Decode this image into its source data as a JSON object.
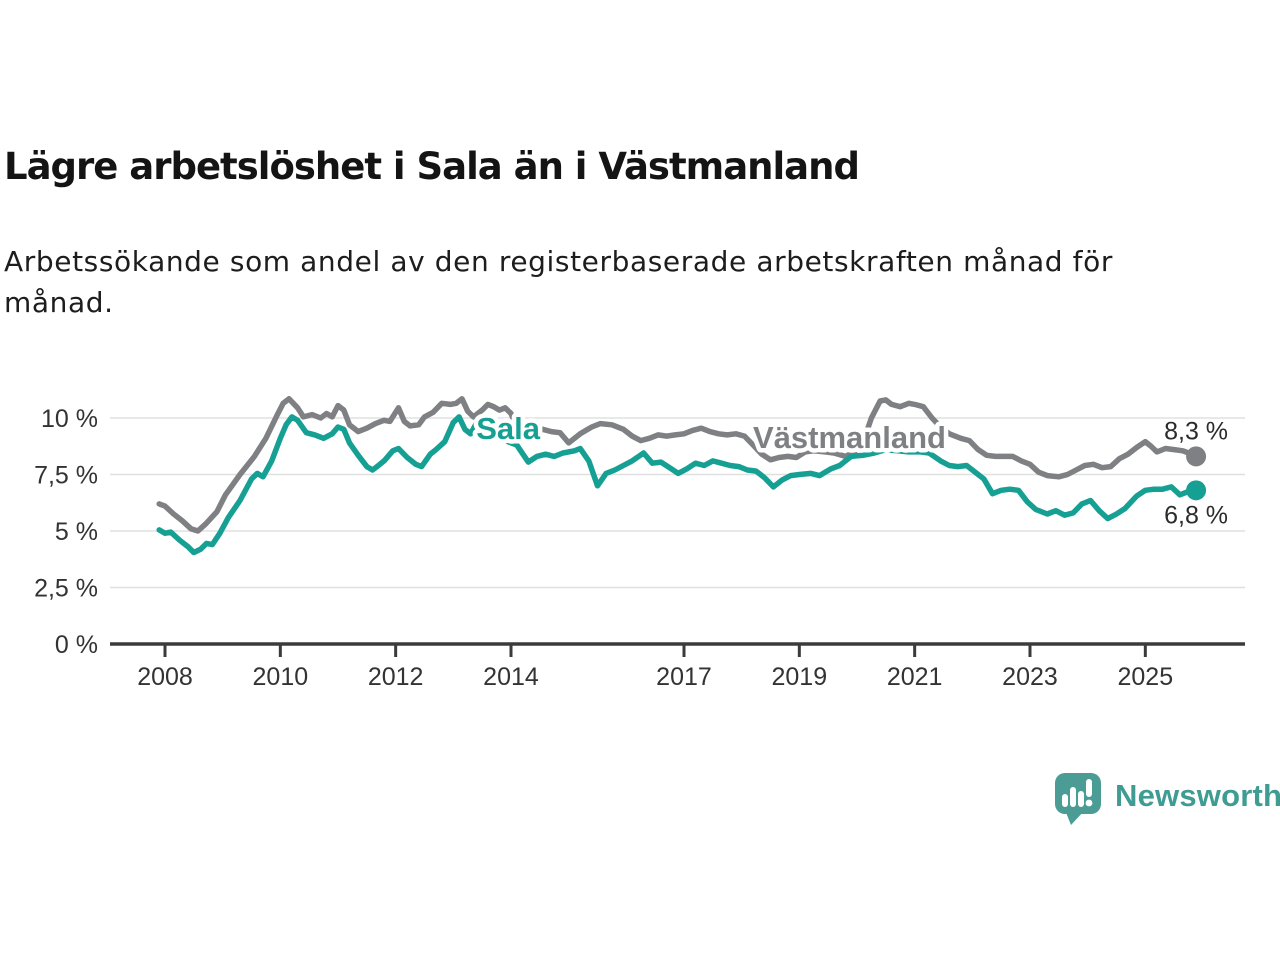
{
  "header": {
    "title": "Lägre arbetslöshet i Sala än i Västmanland",
    "subtitle_line1": "Arbetssökande som andel av den registerbaserade arbetskraften månad för",
    "subtitle_line2": "månad."
  },
  "chart_data": {
    "type": "line",
    "title": "Lägre arbetslöshet i Sala än i Västmanland",
    "subtitle": "Arbetssökande som andel av den registerbaserade arbetskraften månad för månad.",
    "unit": "%",
    "grid": "horizontal",
    "x_range": [
      2007.9,
      2026.7
    ],
    "y_range": [
      0,
      11.4
    ],
    "x_ticks": [
      2008,
      2010,
      2012,
      2014,
      2017,
      2019,
      2021,
      2023,
      2025
    ],
    "x_tick_labels": [
      "2008",
      "2010",
      "2012",
      "2014",
      "2017",
      "2019",
      "2021",
      "2023",
      "2025"
    ],
    "y_ticks": [
      0,
      2.5,
      5,
      7.5,
      10
    ],
    "y_tick_labels": [
      "0 %",
      "2,5 %",
      "5 %",
      "7,5 %",
      "10 %"
    ],
    "axis_color": "#3b3b3b",
    "grid_color": "#e0e0e0",
    "tick_label_color": "#333333",
    "series": [
      {
        "name": "Västmanland",
        "color": "#7f8083",
        "label_at": [
          2019.87,
          9.15
        ],
        "end_label": "8,3 %",
        "end_label_side": "above",
        "points": [
          [
            2007.9,
            6.2
          ],
          [
            2008.0,
            6.1
          ],
          [
            2008.15,
            5.75
          ],
          [
            2008.3,
            5.45
          ],
          [
            2008.45,
            5.1
          ],
          [
            2008.57,
            5.0
          ],
          [
            2008.7,
            5.3
          ],
          [
            2008.9,
            5.85
          ],
          [
            2009.05,
            6.6
          ],
          [
            2009.3,
            7.5
          ],
          [
            2009.55,
            8.3
          ],
          [
            2009.75,
            9.1
          ],
          [
            2009.95,
            10.15
          ],
          [
            2010.05,
            10.65
          ],
          [
            2010.15,
            10.85
          ],
          [
            2010.3,
            10.45
          ],
          [
            2010.4,
            10.05
          ],
          [
            2010.55,
            10.15
          ],
          [
            2010.7,
            10.0
          ],
          [
            2010.8,
            10.2
          ],
          [
            2010.9,
            10.05
          ],
          [
            2011.0,
            10.55
          ],
          [
            2011.1,
            10.35
          ],
          [
            2011.2,
            9.7
          ],
          [
            2011.35,
            9.4
          ],
          [
            2011.5,
            9.55
          ],
          [
            2011.65,
            9.75
          ],
          [
            2011.8,
            9.9
          ],
          [
            2011.9,
            9.85
          ],
          [
            2012.05,
            10.45
          ],
          [
            2012.15,
            9.85
          ],
          [
            2012.25,
            9.65
          ],
          [
            2012.4,
            9.7
          ],
          [
            2012.5,
            10.05
          ],
          [
            2012.65,
            10.25
          ],
          [
            2012.8,
            10.65
          ],
          [
            2012.95,
            10.6
          ],
          [
            2013.05,
            10.65
          ],
          [
            2013.15,
            10.85
          ],
          [
            2013.25,
            10.3
          ],
          [
            2013.35,
            10.05
          ],
          [
            2013.5,
            10.35
          ],
          [
            2013.6,
            10.6
          ],
          [
            2013.7,
            10.5
          ],
          [
            2013.8,
            10.35
          ],
          [
            2013.9,
            10.45
          ],
          [
            2014.0,
            10.2
          ],
          [
            2014.1,
            9.6
          ],
          [
            2014.25,
            9.4
          ],
          [
            2014.4,
            9.35
          ],
          [
            2014.55,
            9.5
          ],
          [
            2014.7,
            9.4
          ],
          [
            2014.85,
            9.35
          ],
          [
            2015.0,
            8.9
          ],
          [
            2015.2,
            9.3
          ],
          [
            2015.4,
            9.6
          ],
          [
            2015.55,
            9.75
          ],
          [
            2015.75,
            9.7
          ],
          [
            2015.95,
            9.5
          ],
          [
            2016.1,
            9.2
          ],
          [
            2016.25,
            9.0
          ],
          [
            2016.4,
            9.1
          ],
          [
            2016.55,
            9.25
          ],
          [
            2016.7,
            9.2
          ],
          [
            2016.85,
            9.25
          ],
          [
            2017.0,
            9.3
          ],
          [
            2017.15,
            9.45
          ],
          [
            2017.3,
            9.55
          ],
          [
            2017.45,
            9.4
          ],
          [
            2017.6,
            9.3
          ],
          [
            2017.75,
            9.25
          ],
          [
            2017.9,
            9.3
          ],
          [
            2018.05,
            9.2
          ],
          [
            2018.2,
            8.8
          ],
          [
            2018.35,
            8.4
          ],
          [
            2018.5,
            8.15
          ],
          [
            2018.65,
            8.25
          ],
          [
            2018.8,
            8.3
          ],
          [
            2018.95,
            8.25
          ],
          [
            2019.1,
            8.5
          ],
          [
            2019.25,
            8.55
          ],
          [
            2019.45,
            8.5
          ],
          [
            2019.6,
            8.45
          ],
          [
            2019.8,
            8.3
          ],
          [
            2019.95,
            8.5
          ],
          [
            2020.1,
            8.9
          ],
          [
            2020.25,
            10.0
          ],
          [
            2020.4,
            10.75
          ],
          [
            2020.5,
            10.8
          ],
          [
            2020.6,
            10.6
          ],
          [
            2020.75,
            10.5
          ],
          [
            2020.9,
            10.65
          ],
          [
            2021.0,
            10.6
          ],
          [
            2021.15,
            10.5
          ],
          [
            2021.3,
            10.0
          ],
          [
            2021.45,
            9.6
          ],
          [
            2021.6,
            9.3
          ],
          [
            2021.8,
            9.1
          ],
          [
            2021.95,
            9.0
          ],
          [
            2022.1,
            8.6
          ],
          [
            2022.25,
            8.35
          ],
          [
            2022.4,
            8.3
          ],
          [
            2022.55,
            8.3
          ],
          [
            2022.7,
            8.3
          ],
          [
            2022.85,
            8.1
          ],
          [
            2023.0,
            7.95
          ],
          [
            2023.15,
            7.6
          ],
          [
            2023.3,
            7.45
          ],
          [
            2023.5,
            7.4
          ],
          [
            2023.65,
            7.5
          ],
          [
            2023.8,
            7.7
          ],
          [
            2023.95,
            7.9
          ],
          [
            2024.1,
            7.95
          ],
          [
            2024.25,
            7.8
          ],
          [
            2024.4,
            7.85
          ],
          [
            2024.55,
            8.2
          ],
          [
            2024.7,
            8.4
          ],
          [
            2024.85,
            8.7
          ],
          [
            2025.0,
            8.95
          ],
          [
            2025.1,
            8.75
          ],
          [
            2025.2,
            8.5
          ],
          [
            2025.35,
            8.65
          ],
          [
            2025.5,
            8.6
          ],
          [
            2025.65,
            8.55
          ],
          [
            2025.75,
            8.45
          ],
          [
            2025.88,
            8.3
          ]
        ]
      },
      {
        "name": "Sala",
        "color": "#16a094",
        "label_at": [
          2013.95,
          9.55
        ],
        "end_label": "6,8 %",
        "end_label_side": "below",
        "points": [
          [
            2007.9,
            5.05
          ],
          [
            2008.0,
            4.9
          ],
          [
            2008.1,
            4.95
          ],
          [
            2008.25,
            4.6
          ],
          [
            2008.4,
            4.3
          ],
          [
            2008.5,
            4.05
          ],
          [
            2008.62,
            4.2
          ],
          [
            2008.72,
            4.45
          ],
          [
            2008.82,
            4.4
          ],
          [
            2008.95,
            4.9
          ],
          [
            2009.1,
            5.6
          ],
          [
            2009.3,
            6.35
          ],
          [
            2009.5,
            7.3
          ],
          [
            2009.6,
            7.55
          ],
          [
            2009.7,
            7.4
          ],
          [
            2009.85,
            8.1
          ],
          [
            2010.0,
            9.1
          ],
          [
            2010.1,
            9.7
          ],
          [
            2010.2,
            10.05
          ],
          [
            2010.3,
            9.9
          ],
          [
            2010.45,
            9.35
          ],
          [
            2010.6,
            9.25
          ],
          [
            2010.75,
            9.1
          ],
          [
            2010.9,
            9.3
          ],
          [
            2011.0,
            9.6
          ],
          [
            2011.1,
            9.5
          ],
          [
            2011.2,
            8.9
          ],
          [
            2011.35,
            8.35
          ],
          [
            2011.5,
            7.85
          ],
          [
            2011.6,
            7.7
          ],
          [
            2011.7,
            7.9
          ],
          [
            2011.8,
            8.1
          ],
          [
            2011.95,
            8.55
          ],
          [
            2012.05,
            8.65
          ],
          [
            2012.2,
            8.25
          ],
          [
            2012.35,
            7.95
          ],
          [
            2012.45,
            7.85
          ],
          [
            2012.6,
            8.4
          ],
          [
            2012.7,
            8.6
          ],
          [
            2012.85,
            8.95
          ],
          [
            2013.0,
            9.8
          ],
          [
            2013.1,
            10.05
          ],
          [
            2013.2,
            9.5
          ],
          [
            2013.3,
            9.3
          ],
          [
            2013.45,
            10.0
          ],
          [
            2013.6,
            9.5
          ],
          [
            2013.7,
            9.3
          ],
          [
            2013.8,
            9.4
          ],
          [
            2013.95,
            8.95
          ],
          [
            2014.1,
            8.8
          ],
          [
            2014.3,
            8.05
          ],
          [
            2014.45,
            8.3
          ],
          [
            2014.6,
            8.4
          ],
          [
            2014.75,
            8.3
          ],
          [
            2014.9,
            8.45
          ],
          [
            2015.1,
            8.55
          ],
          [
            2015.2,
            8.65
          ],
          [
            2015.35,
            8.1
          ],
          [
            2015.5,
            7.0
          ],
          [
            2015.65,
            7.55
          ],
          [
            2015.8,
            7.7
          ],
          [
            2015.95,
            7.9
          ],
          [
            2016.1,
            8.1
          ],
          [
            2016.3,
            8.45
          ],
          [
            2016.45,
            8.0
          ],
          [
            2016.6,
            8.05
          ],
          [
            2016.75,
            7.8
          ],
          [
            2016.9,
            7.55
          ],
          [
            2017.05,
            7.75
          ],
          [
            2017.2,
            8.0
          ],
          [
            2017.35,
            7.9
          ],
          [
            2017.5,
            8.1
          ],
          [
            2017.65,
            8.0
          ],
          [
            2017.8,
            7.9
          ],
          [
            2017.95,
            7.85
          ],
          [
            2018.1,
            7.7
          ],
          [
            2018.25,
            7.65
          ],
          [
            2018.4,
            7.35
          ],
          [
            2018.55,
            6.95
          ],
          [
            2018.7,
            7.25
          ],
          [
            2018.85,
            7.45
          ],
          [
            2019.0,
            7.5
          ],
          [
            2019.2,
            7.55
          ],
          [
            2019.35,
            7.45
          ],
          [
            2019.55,
            7.75
          ],
          [
            2019.7,
            7.9
          ],
          [
            2019.9,
            8.3
          ],
          [
            2020.1,
            8.35
          ],
          [
            2020.3,
            8.45
          ],
          [
            2020.5,
            8.6
          ],
          [
            2020.7,
            8.55
          ],
          [
            2020.9,
            8.5
          ],
          [
            2021.1,
            8.5
          ],
          [
            2021.25,
            8.45
          ],
          [
            2021.45,
            8.1
          ],
          [
            2021.6,
            7.9
          ],
          [
            2021.75,
            7.85
          ],
          [
            2021.9,
            7.9
          ],
          [
            2022.05,
            7.6
          ],
          [
            2022.2,
            7.3
          ],
          [
            2022.35,
            6.65
          ],
          [
            2022.5,
            6.8
          ],
          [
            2022.65,
            6.85
          ],
          [
            2022.8,
            6.8
          ],
          [
            2022.95,
            6.3
          ],
          [
            2023.1,
            5.95
          ],
          [
            2023.3,
            5.75
          ],
          [
            2023.45,
            5.9
          ],
          [
            2023.6,
            5.7
          ],
          [
            2023.75,
            5.8
          ],
          [
            2023.9,
            6.2
          ],
          [
            2024.05,
            6.35
          ],
          [
            2024.2,
            5.9
          ],
          [
            2024.35,
            5.55
          ],
          [
            2024.5,
            5.75
          ],
          [
            2024.65,
            6.0
          ],
          [
            2024.85,
            6.55
          ],
          [
            2025.0,
            6.8
          ],
          [
            2025.15,
            6.85
          ],
          [
            2025.3,
            6.85
          ],
          [
            2025.45,
            6.95
          ],
          [
            2025.6,
            6.6
          ],
          [
            2025.75,
            6.75
          ],
          [
            2025.88,
            6.8
          ]
        ]
      }
    ]
  },
  "footer": {
    "brand": "Newsworthy",
    "brand_color": "#3f9c93",
    "logo_icon": "bar-chart-speech-bubble-icon",
    "logo_color": "#4a9c94"
  }
}
